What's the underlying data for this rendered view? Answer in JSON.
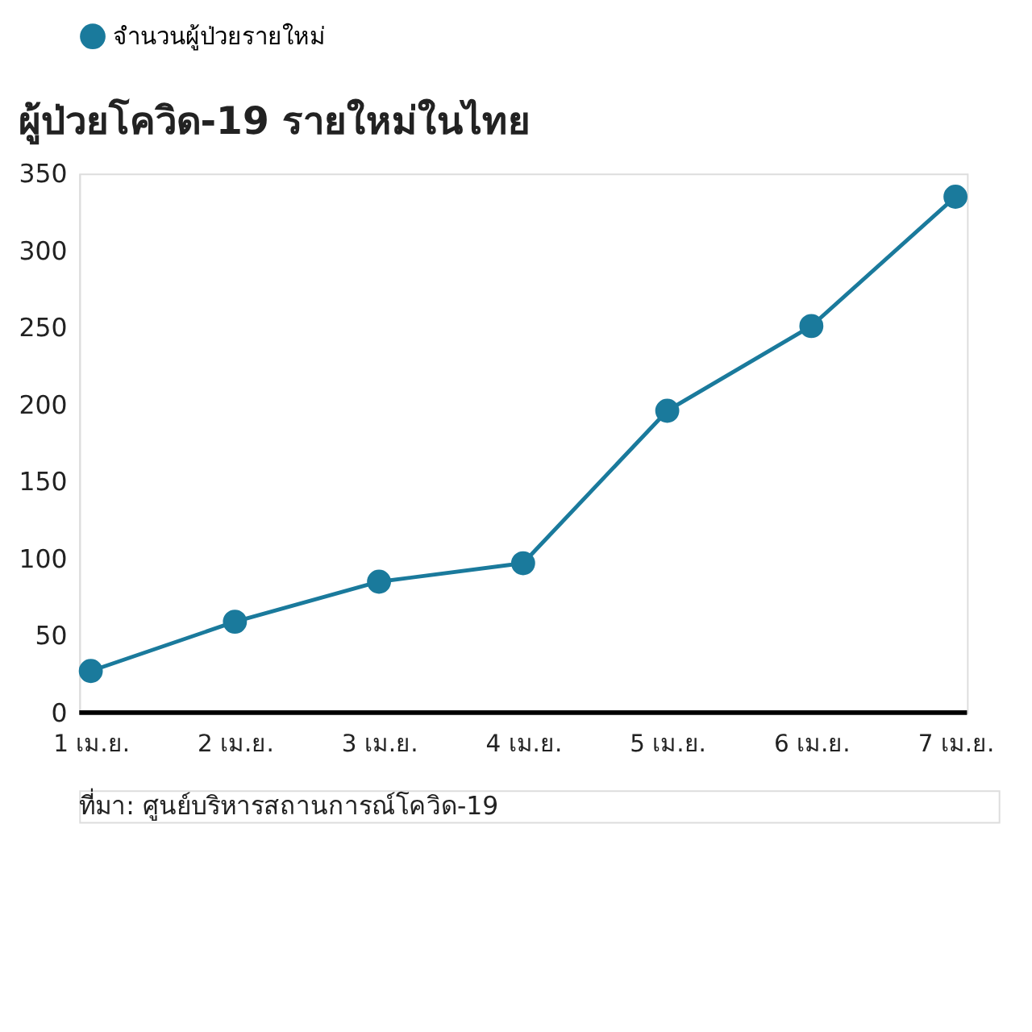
{
  "chart_data": {
    "type": "line",
    "title": "ผู้ป่วยโควิด-19 รายใหม่ในไทย",
    "categories": [
      "1 เม.ย.",
      "2 เม.ย.",
      "3 เม.ย.",
      "4 เม.ย.",
      "5 เม.ย.",
      "6 เม.ย.",
      "7 เม.ย."
    ],
    "series": [
      {
        "name": "จำนวนผู้ป่วยรายใหม่",
        "color": "#1a7a9c",
        "values": [
          27,
          59,
          85,
          97,
          196,
          251,
          335
        ]
      }
    ],
    "ylim": [
      0,
      350
    ],
    "yticks": [
      0,
      50,
      100,
      150,
      200,
      250,
      300,
      350
    ],
    "grid": false,
    "legend": "top left",
    "marker": "circle",
    "line_style": "solid",
    "annotations": [
      "ที่มา: ศูนย์บริหารสถานการณ์โควิด-19"
    ]
  }
}
